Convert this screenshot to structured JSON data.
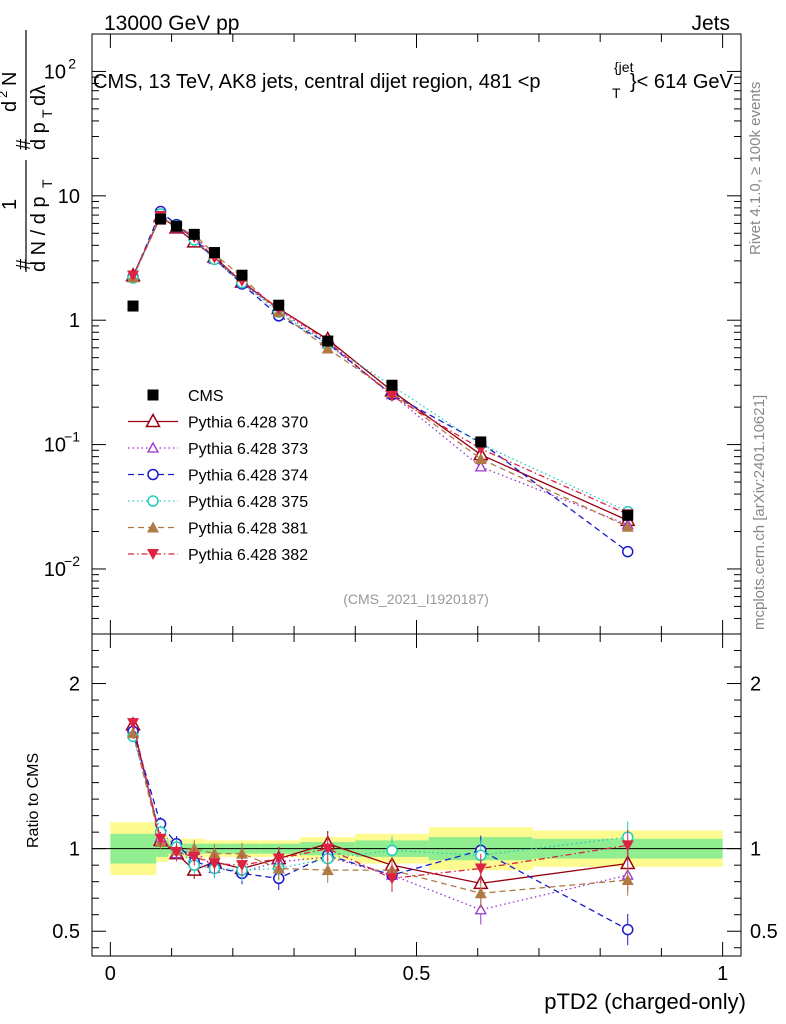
{
  "header": {
    "left": "13000 GeV pp",
    "right": "Jets"
  },
  "side_labels": {
    "rivet": "Rivet 4.1.0, ≥ 100k events",
    "mcplots": "mcplots.cern.ch [arXiv:2401.10621]"
  },
  "chart_data": {
    "type": "line",
    "title": "CMS, 13 TeV, AK8 jets, central dijet region, 481 <p",
    "title_sub": "T",
    "title_sup": "{jet",
    "title_tail": "}< 614 GeV",
    "ylabel": "#1/dN/dp_T # d^2N/dp_T dλ",
    "xlabel": "pTD2 (charged-only)",
    "ratio_ylabel": "Ratio to CMS",
    "watermark": "(CMS_2021_I1920187)",
    "x_range": [
      -0.03,
      1.03
    ],
    "y_range_log": [
      0.003,
      200
    ],
    "ratio_range": [
      0.35,
      2.3
    ],
    "x_ticks": [
      "0",
      "0.5",
      "1"
    ],
    "y_ticks": [
      "10^-2",
      "10^-1",
      "1",
      "10",
      "10^2"
    ],
    "ratio_ticks": [
      "0.5",
      "1",
      "2"
    ],
    "x": [
      0.037,
      0.082,
      0.108,
      0.137,
      0.17,
      0.215,
      0.275,
      0.355,
      0.46,
      0.605,
      0.845
    ],
    "bin_edges": [
      0.0,
      0.075,
      0.095,
      0.12,
      0.155,
      0.19,
      0.245,
      0.31,
      0.4,
      0.52,
      0.69,
      1.0
    ],
    "band_inner": [
      0.09,
      0.05,
      0.03,
      0.03,
      0.03,
      0.03,
      0.03,
      0.04,
      0.05,
      0.07,
      0.06
    ],
    "band_outer": [
      0.16,
      0.08,
      0.06,
      0.06,
      0.05,
      0.05,
      0.05,
      0.07,
      0.09,
      0.13,
      0.11
    ],
    "cms": [
      1.3,
      6.5,
      5.7,
      4.9,
      3.5,
      2.3,
      1.32,
      0.68,
      0.3,
      0.105,
      0.027
    ],
    "series": [
      {
        "name": "Pythia 6.428 370",
        "color": "#990011",
        "dash": "",
        "marker": "tri-up-open",
        "ratio": [
          1.75,
          1.05,
          0.97,
          0.87,
          0.92,
          0.88,
          0.94,
          1.03,
          0.9,
          0.79,
          0.91
        ]
      },
      {
        "name": "Pythia 6.428 373",
        "color": "#9933cc",
        "dash": "1.5,3",
        "marker": "tri-up-open-small",
        "ratio": [
          1.7,
          1.07,
          0.97,
          0.99,
          0.88,
          0.86,
          0.92,
          0.95,
          0.84,
          0.63,
          0.84
        ]
      },
      {
        "name": "Pythia 6.428 374",
        "color": "#1a1acc",
        "dash": "6,4",
        "marker": "circle-open",
        "ratio": [
          1.71,
          1.15,
          1.03,
          0.92,
          0.89,
          0.85,
          0.82,
          0.96,
          0.84,
          0.99,
          0.51
        ]
      },
      {
        "name": "Pythia 6.428 375",
        "color": "#22ccbb",
        "dash": "1.5,3",
        "marker": "circle-open",
        "ratio": [
          1.68,
          1.1,
          1.01,
          0.9,
          0.88,
          0.87,
          0.88,
          0.94,
          0.99,
          0.96,
          1.07
        ]
      },
      {
        "name": "Pythia 6.428 381",
        "color": "#b07a44",
        "dash": "6,4",
        "marker": "tri-up-filled",
        "ratio": [
          1.7,
          1.04,
          0.99,
          1.0,
          0.97,
          0.97,
          0.88,
          0.87,
          0.87,
          0.73,
          0.81
        ]
      },
      {
        "name": "Pythia 6.428 382",
        "color": "#dd2244",
        "dash": "6,3,1.5,3",
        "marker": "tri-down-filled",
        "ratio": [
          1.76,
          1.06,
          0.98,
          0.95,
          0.91,
          0.9,
          0.94,
          1.0,
          0.82,
          0.88,
          1.02
        ]
      }
    ],
    "legend": {
      "data_label": "CMS",
      "placement": "middle-left"
    }
  }
}
